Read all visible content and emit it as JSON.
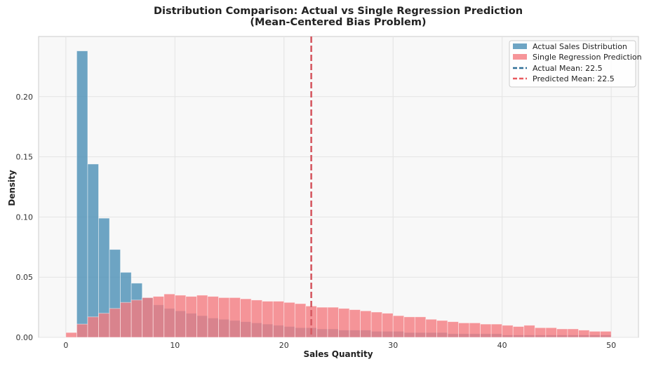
{
  "chart_data": {
    "type": "histogram",
    "title_lines": [
      "Distribution Comparison: Actual vs Single Regression Prediction",
      "(Mean-Centered Bias Problem)"
    ],
    "xlabel": "Sales Quantity",
    "ylabel": "Density",
    "xlim": [
      -2.5,
      52.5
    ],
    "ylim": [
      0,
      0.25
    ],
    "xticks": [
      0,
      10,
      20,
      30,
      40,
      50
    ],
    "yticks": [
      0.0,
      0.05,
      0.1,
      0.15,
      0.2
    ],
    "xtick_labels": [
      "0",
      "10",
      "20",
      "30",
      "40",
      "50"
    ],
    "ytick_labels": [
      "0.00",
      "0.05",
      "0.10",
      "0.15",
      "0.20"
    ],
    "grid": true,
    "legend_position": "top-right",
    "bin_width": 1,
    "series": [
      {
        "name": "Actual Sales Distribution",
        "color": "#4a8fb5",
        "bin_start": 1,
        "values": [
          0.238,
          0.144,
          0.099,
          0.073,
          0.054,
          0.045,
          0.033,
          0.027,
          0.024,
          0.022,
          0.02,
          0.018,
          0.016,
          0.015,
          0.014,
          0.013,
          0.012,
          0.011,
          0.01,
          0.009,
          0.008,
          0.008,
          0.007,
          0.007,
          0.006,
          0.006,
          0.006,
          0.005,
          0.005,
          0.005,
          0.004,
          0.004,
          0.004,
          0.004,
          0.003,
          0.003,
          0.003,
          0.003,
          0.003,
          0.002,
          0.002,
          0.002,
          0.002,
          0.002,
          0.002,
          0.002,
          0.002,
          0.002,
          0.002
        ]
      },
      {
        "name": "Single Regression Prediction",
        "color": "#f47a80",
        "bin_start": 0,
        "values": [
          0.004,
          0.011,
          0.017,
          0.02,
          0.024,
          0.029,
          0.031,
          0.033,
          0.034,
          0.036,
          0.035,
          0.034,
          0.035,
          0.034,
          0.033,
          0.033,
          0.032,
          0.031,
          0.03,
          0.03,
          0.029,
          0.028,
          0.026,
          0.025,
          0.025,
          0.024,
          0.023,
          0.022,
          0.021,
          0.02,
          0.018,
          0.017,
          0.017,
          0.015,
          0.014,
          0.013,
          0.012,
          0.012,
          0.011,
          0.011,
          0.01,
          0.009,
          0.01,
          0.008,
          0.008,
          0.007,
          0.007,
          0.006,
          0.005,
          0.005
        ]
      }
    ],
    "reference_lines": [
      {
        "name": "Actual Mean: 22.5",
        "x": 22.5,
        "color": "#2f6f97"
      },
      {
        "name": "Predicted Mean: 22.5",
        "x": 22.5,
        "color": "#e85a5f"
      }
    ]
  }
}
